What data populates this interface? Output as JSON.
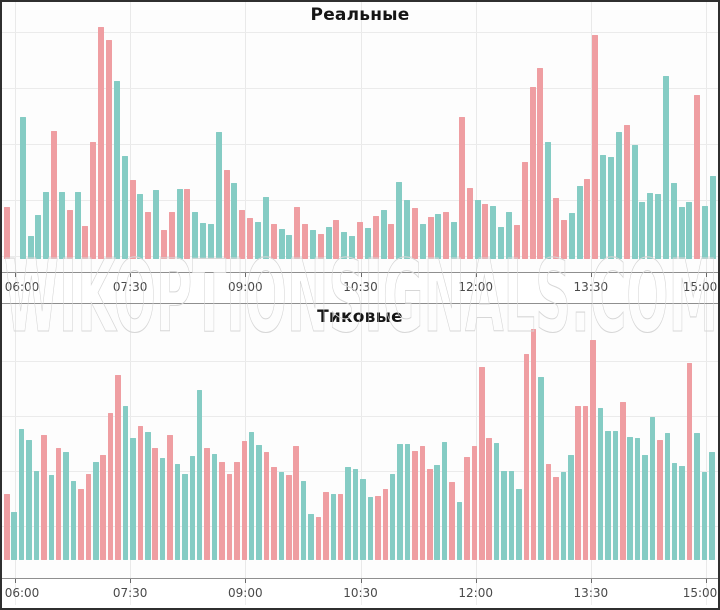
{
  "watermark_text": "WIKOPTIONSIGNALS.COM",
  "colors": {
    "pink": "#ef9ea2",
    "teal": "#85ccc4",
    "grid": "#e9e9e9",
    "axis_line": "#8f8f8f",
    "tick": "#6b6b6b",
    "label": "#4a4a4a",
    "title": "#151515",
    "border": "#2f2f2f",
    "watermark_stroke": "#d7d7d7"
  },
  "chart_data": [
    {
      "type": "bar",
      "title": "Реальные",
      "xlabel": "",
      "ylabel": "",
      "x_ticks": [
        "06:00",
        "07:30",
        "09:00",
        "10:30",
        "12:00",
        "13:30",
        "15:00"
      ],
      "grid": true,
      "legend": "none",
      "value_unit": "pixel-height (no y-axis labels shown)",
      "bars": [
        [
          "p",
          52
        ],
        [
          "p",
          0
        ],
        [
          "t",
          142
        ],
        [
          "t",
          23
        ],
        [
          "t",
          44
        ],
        [
          "t",
          67
        ],
        [
          "p",
          128
        ],
        [
          "t",
          67
        ],
        [
          "p",
          49
        ],
        [
          "t",
          67
        ],
        [
          "p",
          33
        ],
        [
          "p",
          117
        ],
        [
          "p",
          232
        ],
        [
          "p",
          219
        ],
        [
          "t",
          178
        ],
        [
          "t",
          103
        ],
        [
          "p",
          79
        ],
        [
          "t",
          65
        ],
        [
          "p",
          47
        ],
        [
          "t",
          69
        ],
        [
          "p",
          29
        ],
        [
          "p",
          47
        ],
        [
          "t",
          70
        ],
        [
          "p",
          70
        ],
        [
          "t",
          47
        ],
        [
          "t",
          36
        ],
        [
          "t",
          35
        ],
        [
          "t",
          127
        ],
        [
          "p",
          89
        ],
        [
          "t",
          76
        ],
        [
          "p",
          49
        ],
        [
          "p",
          41
        ],
        [
          "t",
          37
        ],
        [
          "t",
          62
        ],
        [
          "p",
          35
        ],
        [
          "t",
          30
        ],
        [
          "t",
          24
        ],
        [
          "p",
          52
        ],
        [
          "p",
          35
        ],
        [
          "t",
          29
        ],
        [
          "p",
          25
        ],
        [
          "t",
          32
        ],
        [
          "p",
          39
        ],
        [
          "t",
          27
        ],
        [
          "t",
          23
        ],
        [
          "p",
          37
        ],
        [
          "t",
          31
        ],
        [
          "p",
          43
        ],
        [
          "t",
          49
        ],
        [
          "p",
          35
        ],
        [
          "t",
          77
        ],
        [
          "t",
          59
        ],
        [
          "p",
          51
        ],
        [
          "t",
          35
        ],
        [
          "p",
          42
        ],
        [
          "t",
          45
        ],
        [
          "p",
          47
        ],
        [
          "t",
          37
        ],
        [
          "p",
          142
        ],
        [
          "p",
          71
        ],
        [
          "t",
          59
        ],
        [
          "p",
          55
        ],
        [
          "t",
          53
        ],
        [
          "t",
          32
        ],
        [
          "t",
          47
        ],
        [
          "p",
          34
        ],
        [
          "p",
          97
        ],
        [
          "p",
          172
        ],
        [
          "p",
          191
        ],
        [
          "t",
          117
        ],
        [
          "p",
          61
        ],
        [
          "p",
          39
        ],
        [
          "t",
          46
        ],
        [
          "t",
          73
        ],
        [
          "p",
          80
        ],
        [
          "p",
          224
        ],
        [
          "t",
          104
        ],
        [
          "t",
          102
        ],
        [
          "t",
          127
        ],
        [
          "p",
          134
        ],
        [
          "t",
          114
        ],
        [
          "t",
          57
        ],
        [
          "t",
          66
        ],
        [
          "t",
          65
        ],
        [
          "t",
          183
        ],
        [
          "t",
          76
        ],
        [
          "t",
          52
        ],
        [
          "t",
          57
        ],
        [
          "p",
          164
        ],
        [
          "t",
          53
        ],
        [
          "t",
          83
        ]
      ]
    },
    {
      "type": "bar",
      "title": "Тиковые",
      "xlabel": "",
      "ylabel": "",
      "x_ticks": [
        "06:00",
        "07:30",
        "09:00",
        "10:30",
        "12:00",
        "13:30",
        "15:00"
      ],
      "grid": true,
      "legend": "none",
      "value_unit": "pixel-height (no y-axis labels shown)",
      "bars": [
        [
          "p",
          66
        ],
        [
          "t",
          48
        ],
        [
          "t",
          131
        ],
        [
          "t",
          120
        ],
        [
          "t",
          89
        ],
        [
          "p",
          125
        ],
        [
          "t",
          85
        ],
        [
          "p",
          112
        ],
        [
          "t",
          108
        ],
        [
          "t",
          79
        ],
        [
          "p",
          71
        ],
        [
          "p",
          86
        ],
        [
          "t",
          98
        ],
        [
          "p",
          105
        ],
        [
          "p",
          147
        ],
        [
          "p",
          185
        ],
        [
          "t",
          154
        ],
        [
          "t",
          122
        ],
        [
          "p",
          134
        ],
        [
          "t",
          128
        ],
        [
          "p",
          112
        ],
        [
          "t",
          102
        ],
        [
          "p",
          125
        ],
        [
          "t",
          96
        ],
        [
          "t",
          86
        ],
        [
          "t",
          104
        ],
        [
          "t",
          170
        ],
        [
          "p",
          112
        ],
        [
          "t",
          106
        ],
        [
          "p",
          98
        ],
        [
          "p",
          86
        ],
        [
          "p",
          98
        ],
        [
          "p",
          119
        ],
        [
          "t",
          128
        ],
        [
          "t",
          115
        ],
        [
          "p",
          108
        ],
        [
          "p",
          93
        ],
        [
          "t",
          88
        ],
        [
          "p",
          85
        ],
        [
          "p",
          114
        ],
        [
          "t",
          79
        ],
        [
          "t",
          46
        ],
        [
          "p",
          43
        ],
        [
          "p",
          68
        ],
        [
          "t",
          66
        ],
        [
          "p",
          66
        ],
        [
          "t",
          93
        ],
        [
          "t",
          91
        ],
        [
          "t",
          81
        ],
        [
          "t",
          63
        ],
        [
          "p",
          64
        ],
        [
          "p",
          71
        ],
        [
          "t",
          86
        ],
        [
          "t",
          116
        ],
        [
          "t",
          116
        ],
        [
          "p",
          109
        ],
        [
          "p",
          114
        ],
        [
          "p",
          91
        ],
        [
          "t",
          95
        ],
        [
          "t",
          118
        ],
        [
          "p",
          78
        ],
        [
          "t",
          58
        ],
        [
          "p",
          103
        ],
        [
          "p",
          114
        ],
        [
          "p",
          193
        ],
        [
          "p",
          122
        ],
        [
          "t",
          117
        ],
        [
          "t",
          89
        ],
        [
          "t",
          89
        ],
        [
          "t",
          71
        ],
        [
          "p",
          206
        ],
        [
          "p",
          231
        ],
        [
          "t",
          183
        ],
        [
          "p",
          96
        ],
        [
          "p",
          83
        ],
        [
          "t",
          88
        ],
        [
          "t",
          105
        ],
        [
          "p",
          154
        ],
        [
          "p",
          154
        ],
        [
          "p",
          220
        ],
        [
          "t",
          152
        ],
        [
          "t",
          129
        ],
        [
          "t",
          129
        ],
        [
          "p",
          158
        ],
        [
          "t",
          123
        ],
        [
          "t",
          122
        ],
        [
          "t",
          105
        ],
        [
          "t",
          143
        ],
        [
          "p",
          120
        ],
        [
          "t",
          127
        ],
        [
          "t",
          97
        ],
        [
          "t",
          94
        ],
        [
          "p",
          197
        ],
        [
          "t",
          127
        ],
        [
          "t",
          88
        ],
        [
          "t",
          108
        ]
      ]
    }
  ]
}
